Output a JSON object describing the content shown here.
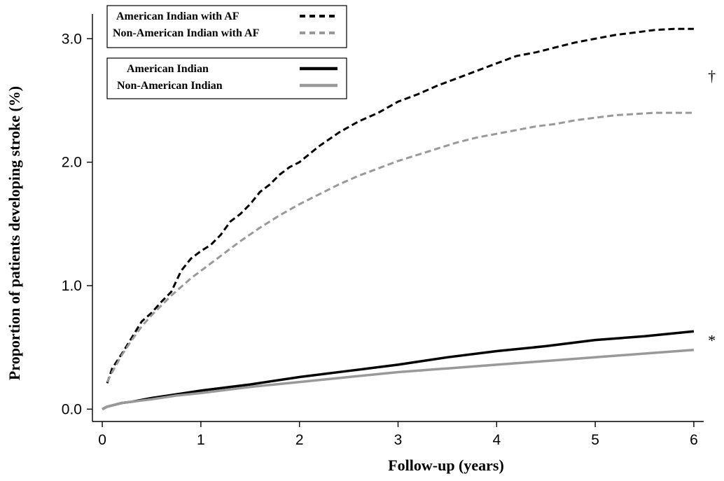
{
  "chart_data": {
    "type": "line",
    "title": "",
    "xlabel": "Follow-up (years)",
    "ylabel": "Proportion of patients developing stroke (%)",
    "xlim": [
      -0.1,
      6.1
    ],
    "ylim": [
      -0.1,
      3.2
    ],
    "xticks": [
      0,
      1,
      2,
      3,
      4,
      5,
      6
    ],
    "xtick_labels": [
      "0",
      "1",
      "2",
      "3",
      "4",
      "5",
      "6"
    ],
    "yticks": [
      0.0,
      1.0,
      2.0,
      3.0
    ],
    "ytick_labels": [
      "0.0",
      "1.0",
      "2.0",
      "3.0"
    ],
    "grid": false,
    "legend_position": "top-left",
    "series": [
      {
        "name": "American Indian with AF",
        "style": "dashed",
        "color": "#000000",
        "x": [
          0.05,
          0.1,
          0.2,
          0.3,
          0.4,
          0.5,
          0.6,
          0.7,
          0.8,
          0.9,
          1.0,
          1.1,
          1.2,
          1.3,
          1.4,
          1.5,
          1.6,
          1.7,
          1.8,
          1.9,
          2.0,
          2.2,
          2.4,
          2.6,
          2.8,
          3.0,
          3.2,
          3.4,
          3.6,
          3.8,
          4.0,
          4.2,
          4.4,
          4.6,
          4.8,
          5.0,
          5.2,
          5.4,
          5.6,
          5.8,
          6.0
        ],
        "y": [
          0.21,
          0.33,
          0.45,
          0.58,
          0.71,
          0.78,
          0.87,
          0.95,
          1.12,
          1.22,
          1.28,
          1.33,
          1.41,
          1.52,
          1.58,
          1.66,
          1.76,
          1.82,
          1.9,
          1.96,
          2.0,
          2.13,
          2.24,
          2.33,
          2.4,
          2.49,
          2.55,
          2.62,
          2.68,
          2.74,
          2.8,
          2.86,
          2.89,
          2.93,
          2.97,
          3.0,
          3.03,
          3.05,
          3.07,
          3.08,
          3.08
        ]
      },
      {
        "name": "Non-American Indian with AF",
        "style": "dashed",
        "color": "#999999",
        "x": [
          0.05,
          0.1,
          0.2,
          0.3,
          0.4,
          0.5,
          0.6,
          0.7,
          0.8,
          0.9,
          1.0,
          1.2,
          1.4,
          1.6,
          1.8,
          2.0,
          2.2,
          2.4,
          2.6,
          2.8,
          3.0,
          3.2,
          3.4,
          3.6,
          3.8,
          4.0,
          4.2,
          4.4,
          4.6,
          4.8,
          5.0,
          5.2,
          5.4,
          5.6,
          5.8,
          6.0
        ],
        "y": [
          0.22,
          0.3,
          0.44,
          0.56,
          0.67,
          0.76,
          0.84,
          0.92,
          0.99,
          1.06,
          1.12,
          1.24,
          1.36,
          1.47,
          1.57,
          1.66,
          1.74,
          1.82,
          1.89,
          1.95,
          2.01,
          2.06,
          2.11,
          2.16,
          2.2,
          2.23,
          2.26,
          2.29,
          2.31,
          2.34,
          2.36,
          2.38,
          2.39,
          2.4,
          2.4,
          2.4
        ]
      },
      {
        "name": "American Indian",
        "style": "solid",
        "color": "#000000",
        "x": [
          0.0,
          0.05,
          0.1,
          0.2,
          0.3,
          0.5,
          0.75,
          1.0,
          1.5,
          2.0,
          2.5,
          3.0,
          3.5,
          4.0,
          4.5,
          5.0,
          5.5,
          6.0
        ],
        "y": [
          0.0,
          0.02,
          0.03,
          0.05,
          0.06,
          0.09,
          0.12,
          0.15,
          0.2,
          0.26,
          0.31,
          0.36,
          0.42,
          0.47,
          0.51,
          0.56,
          0.59,
          0.63
        ]
      },
      {
        "name": "Non-American Indian",
        "style": "solid",
        "color": "#999999",
        "x": [
          0.0,
          0.05,
          0.1,
          0.2,
          0.3,
          0.5,
          0.75,
          1.0,
          1.5,
          2.0,
          2.5,
          3.0,
          3.5,
          4.0,
          4.5,
          5.0,
          5.5,
          6.0
        ],
        "y": [
          0.0,
          0.02,
          0.03,
          0.05,
          0.06,
          0.08,
          0.11,
          0.13,
          0.18,
          0.22,
          0.26,
          0.3,
          0.33,
          0.36,
          0.39,
          0.42,
          0.45,
          0.48
        ]
      }
    ],
    "annotations": [
      {
        "text": "†",
        "near_series": "American Indian with AF",
        "x": 6.2,
        "y": 2.7
      },
      {
        "text": "*",
        "near_series": "American Indian",
        "x": 6.2,
        "y": 0.56
      }
    ]
  }
}
